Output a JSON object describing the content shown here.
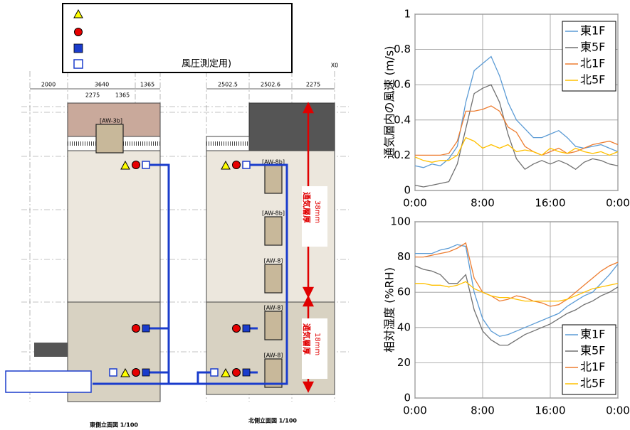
{
  "legend_box": {
    "note": "風圧測定用)"
  },
  "diagram": {
    "dims": [
      "2000",
      "3640",
      "1365",
      "2502.5",
      "2502.6",
      "2275"
    ],
    "axis_mark": "X0",
    "sub_dims": [
      "2275",
      "1365"
    ],
    "windows": [
      "[AW-3b]",
      "[AW-8b]",
      "[AW-8b]",
      "[AW-8]",
      "[AW-8]",
      "[AW-8]"
    ],
    "layer_upper": [
      "通気層厚",
      "38mm"
    ],
    "layer_lower": [
      "通気層厚",
      "18mm"
    ],
    "captions": [
      "東側立面図 1/100",
      "北側立面図 1/100"
    ]
  },
  "chart_data": [
    {
      "type": "line",
      "y_label": "通気層内の風速 (m/s)",
      "x": [
        0,
        1,
        2,
        3,
        4,
        5,
        6,
        7,
        8,
        9,
        10,
        11,
        12,
        13,
        14,
        15,
        16,
        17,
        18,
        19,
        20,
        21,
        22,
        23,
        24
      ],
      "xlim": [
        0,
        24
      ],
      "xticks": [
        {
          "value": 0,
          "label": "0:00"
        },
        {
          "value": 8,
          "label": "8:00"
        },
        {
          "value": 16,
          "label": "16:00"
        },
        {
          "value": 24,
          "label": "0:00"
        }
      ],
      "ylim": [
        0,
        1
      ],
      "yticks": [
        0,
        0.2,
        0.4,
        0.6,
        0.8,
        1
      ],
      "grid": true,
      "legend": "top-right",
      "series": [
        {
          "name": "東1F",
          "color": "#5b9bd5",
          "values": [
            0.14,
            0.13,
            0.15,
            0.14,
            0.18,
            0.25,
            0.5,
            0.68,
            0.72,
            0.76,
            0.65,
            0.5,
            0.4,
            0.35,
            0.3,
            0.3,
            0.32,
            0.34,
            0.3,
            0.25,
            0.24,
            0.25,
            0.26,
            0.24,
            0.22
          ]
        },
        {
          "name": "東5F",
          "color": "#707070",
          "values": [
            0.03,
            0.02,
            0.03,
            0.04,
            0.05,
            0.15,
            0.35,
            0.55,
            0.58,
            0.6,
            0.5,
            0.32,
            0.18,
            0.12,
            0.15,
            0.17,
            0.15,
            0.17,
            0.15,
            0.12,
            0.16,
            0.18,
            0.17,
            0.15,
            0.14
          ]
        },
        {
          "name": "北1F",
          "color": "#ed7d31",
          "values": [
            0.2,
            0.2,
            0.2,
            0.2,
            0.21,
            0.28,
            0.45,
            0.45,
            0.46,
            0.48,
            0.45,
            0.36,
            0.33,
            0.25,
            0.22,
            0.2,
            0.22,
            0.24,
            0.21,
            0.22,
            0.24,
            0.26,
            0.27,
            0.28,
            0.26
          ]
        },
        {
          "name": "北5F",
          "color": "#ffc000",
          "values": [
            0.19,
            0.17,
            0.16,
            0.17,
            0.17,
            0.2,
            0.3,
            0.28,
            0.24,
            0.26,
            0.24,
            0.26,
            0.22,
            0.23,
            0.22,
            0.2,
            0.24,
            0.22,
            0.21,
            0.24,
            0.22,
            0.21,
            0.22,
            0.2,
            0.22
          ]
        }
      ]
    },
    {
      "type": "line",
      "y_label": "相対湿度 (%RH)",
      "x": [
        0,
        1,
        2,
        3,
        4,
        5,
        6,
        7,
        8,
        9,
        10,
        11,
        12,
        13,
        14,
        15,
        16,
        17,
        18,
        19,
        20,
        21,
        22,
        23,
        24
      ],
      "xlim": [
        0,
        24
      ],
      "xticks": [
        {
          "value": 0,
          "label": "0:00"
        },
        {
          "value": 8,
          "label": "8:00"
        },
        {
          "value": 16,
          "label": "16:00"
        },
        {
          "value": 24,
          "label": "0:00"
        }
      ],
      "ylim": [
        0,
        100
      ],
      "yticks": [
        0,
        20,
        40,
        60,
        80,
        100
      ],
      "grid": true,
      "legend": "bottom-right",
      "series": [
        {
          "name": "東1F",
          "color": "#5b9bd5",
          "values": [
            82,
            82,
            82,
            84,
            85,
            87,
            86,
            60,
            45,
            38,
            35,
            36,
            38,
            40,
            42,
            44,
            46,
            48,
            52,
            55,
            58,
            60,
            65,
            70,
            76
          ]
        },
        {
          "name": "東5F",
          "color": "#707070",
          "values": [
            75,
            73,
            72,
            70,
            65,
            65,
            70,
            50,
            38,
            33,
            30,
            30,
            33,
            36,
            38,
            40,
            42,
            45,
            48,
            50,
            53,
            55,
            58,
            60,
            63
          ]
        },
        {
          "name": "北1F",
          "color": "#ed7d31",
          "values": [
            80,
            80,
            81,
            82,
            83,
            85,
            88,
            68,
            60,
            58,
            55,
            56,
            58,
            57,
            55,
            54,
            52,
            53,
            56,
            60,
            64,
            68,
            72,
            75,
            77
          ]
        },
        {
          "name": "北5F",
          "color": "#ffc000",
          "values": [
            65,
            65,
            64,
            64,
            63,
            64,
            66,
            62,
            60,
            58,
            57,
            57,
            56,
            55,
            55,
            55,
            55,
            55,
            56,
            58,
            60,
            62,
            63,
            64,
            65
          ]
        }
      ]
    }
  ]
}
